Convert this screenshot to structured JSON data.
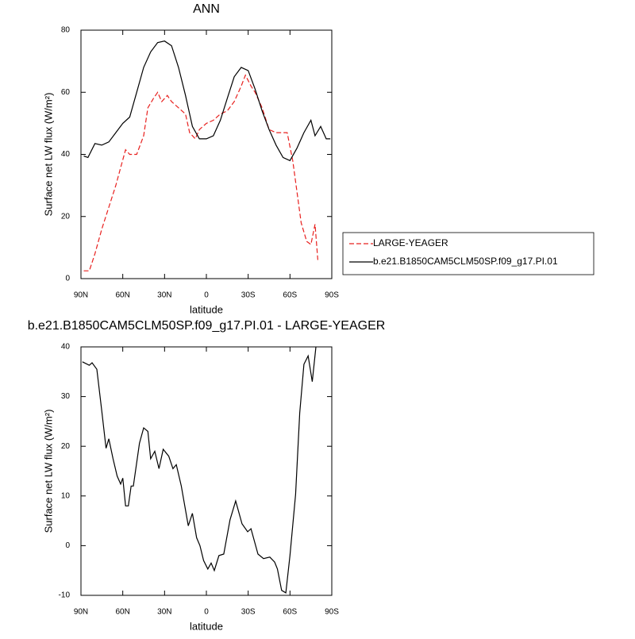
{
  "chart_data": [
    {
      "type": "line",
      "title": "ANN",
      "x_label": "latitude",
      "y_label": "Surface net LW flux (W/m²)",
      "xlim": [
        90,
        -90
      ],
      "ylim": [
        0,
        80
      ],
      "xticks": [
        {
          "value": 90,
          "label": "90N"
        },
        {
          "value": 60,
          "label": "60N"
        },
        {
          "value": 30,
          "label": "30N"
        },
        0,
        {
          "value": -30,
          "label": "30S"
        },
        {
          "value": -60,
          "label": "60S"
        },
        {
          "value": -90,
          "label": "90S"
        }
      ],
      "yticks": [
        0,
        20,
        40,
        60,
        80
      ],
      "legend": "right",
      "series": [
        {
          "name": "LARGE-YEAGER",
          "color": "#e8201e",
          "dashed": true,
          "x": [
            88,
            84,
            80,
            75,
            70,
            65,
            62,
            58,
            55,
            50,
            45,
            42,
            38,
            35,
            32,
            28,
            25,
            20,
            15,
            12,
            8,
            5,
            0,
            -5,
            -10,
            -15,
            -20,
            -25,
            -28,
            -32,
            -35,
            -40,
            -45,
            -50,
            -55,
            -58,
            -62,
            -65,
            -68,
            -72,
            -75,
            -78,
            -80
          ],
          "values": [
            2.5,
            2.5,
            8,
            16,
            23,
            30,
            35,
            41.5,
            40,
            40,
            46,
            55,
            58,
            60,
            57,
            59,
            57,
            55,
            53,
            47,
            45,
            48,
            50,
            51,
            53,
            54,
            57,
            62,
            65.5,
            62,
            60,
            55,
            48,
            47,
            47,
            47,
            38,
            28,
            18,
            12,
            11,
            17.5,
            6
          ]
        },
        {
          "name": "b.e21.B1850CAM5CLM50SP.f09_g17.PI.01",
          "color": "#000000",
          "dashed": false,
          "x": [
            88,
            85,
            80,
            75,
            70,
            65,
            60,
            55,
            50,
            45,
            40,
            35,
            30,
            25,
            20,
            15,
            10,
            5,
            0,
            -5,
            -10,
            -15,
            -20,
            -25,
            -30,
            -35,
            -40,
            -45,
            -50,
            -55,
            -60,
            -65,
            -70,
            -75,
            -78,
            -82,
            -86,
            -89
          ],
          "values": [
            39.5,
            39,
            43.5,
            43,
            44,
            47,
            50,
            52,
            60,
            68,
            73,
            76,
            76.5,
            75,
            68,
            59,
            49,
            45,
            45,
            46,
            51,
            58,
            65,
            68,
            67,
            61,
            54,
            48,
            43,
            39,
            38,
            42,
            47,
            51,
            46,
            49,
            45,
            45
          ]
        }
      ]
    },
    {
      "type": "line",
      "title": "b.e21.B1850CAM5CLM50SP.f09_g17.PI.01 - LARGE-YEAGER",
      "x_label": "latitude",
      "y_label": "Surface net LW flux (W/m²)",
      "xlim": [
        90,
        -90
      ],
      "ylim": [
        -10,
        40
      ],
      "xticks": [
        {
          "value": 90,
          "label": "90N"
        },
        {
          "value": 60,
          "label": "60N"
        },
        {
          "value": 30,
          "label": "30N"
        },
        0,
        {
          "value": -30,
          "label": "30S"
        },
        {
          "value": -60,
          "label": "60S"
        },
        {
          "value": -90,
          "label": "90S"
        }
      ],
      "yticks": [
        -10,
        0,
        10,
        20,
        30,
        40
      ],
      "color": "#000000",
      "x": [
        89,
        84,
        82,
        78.6,
        75,
        72,
        70,
        67,
        64,
        61.5,
        60,
        58,
        56,
        54,
        52.4,
        48,
        45,
        42,
        40,
        37,
        34,
        31,
        27,
        24,
        21.6,
        18,
        13,
        10,
        7,
        4.6,
        2,
        -1,
        -3.4,
        -5.7,
        -9,
        -12.5,
        -17,
        -21,
        -25.6,
        -29.6,
        -32,
        -37,
        -41,
        -45.5,
        -49,
        -51,
        -54,
        -57,
        -60,
        -64,
        -67,
        -70,
        -73,
        -76,
        -78.6
      ],
      "values": [
        37,
        36.3,
        36.8,
        35.5,
        27,
        19.6,
        21.5,
        17.5,
        14,
        12.4,
        13.6,
        8,
        8,
        12,
        12,
        20.6,
        23.7,
        23,
        17.5,
        19,
        15.5,
        19.4,
        18,
        15.5,
        16.3,
        12,
        4,
        6.5,
        1.6,
        0,
        -3,
        -4.7,
        -3.5,
        -5,
        -2,
        -1.7,
        5.2,
        9,
        4.4,
        2.8,
        3.4,
        -1.7,
        -2.6,
        -2.3,
        -3.3,
        -4.7,
        -9,
        -9.5,
        -2,
        10.3,
        26.7,
        36.5,
        38.2,
        33,
        40
      ]
    }
  ]
}
